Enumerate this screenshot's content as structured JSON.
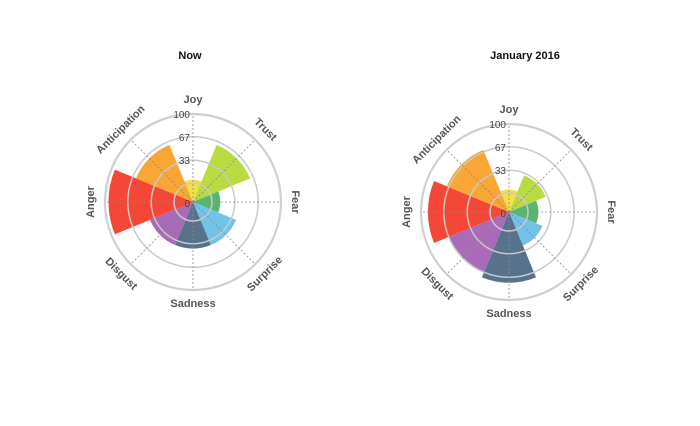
{
  "chart_data": [
    {
      "type": "polar-area",
      "title": "Now",
      "categories": [
        "Joy",
        "Trust",
        "Fear",
        "Surprise",
        "Sadness",
        "Disgust",
        "Anger",
        "Anticipation"
      ],
      "values": [
        5,
        62,
        12,
        40,
        40,
        40,
        95,
        62
      ],
      "radial_ticks": [
        "0",
        "33",
        "67",
        "100"
      ],
      "rlim": [
        0,
        100
      ],
      "colors": [
        "#f2de3c",
        "#b5d935",
        "#4fb26c",
        "#6cc0e8",
        "#4d6a86",
        "#a462b3",
        "#f33d2c",
        "#f8a12a"
      ]
    },
    {
      "type": "polar-area",
      "title": "January 2016",
      "categories": [
        "Joy",
        "Trust",
        "Fear",
        "Surprise",
        "Sadness",
        "Disgust",
        "Anger",
        "Anticipation"
      ],
      "values": [
        5,
        30,
        15,
        25,
        75,
        68,
        90,
        70
      ],
      "radial_ticks": [
        "0",
        "33",
        "67",
        "100"
      ],
      "rlim": [
        0,
        100
      ],
      "colors": [
        "#f2de3c",
        "#b5d935",
        "#4fb26c",
        "#6cc0e8",
        "#4d6a86",
        "#a462b3",
        "#f33d2c",
        "#f8a12a"
      ]
    }
  ]
}
